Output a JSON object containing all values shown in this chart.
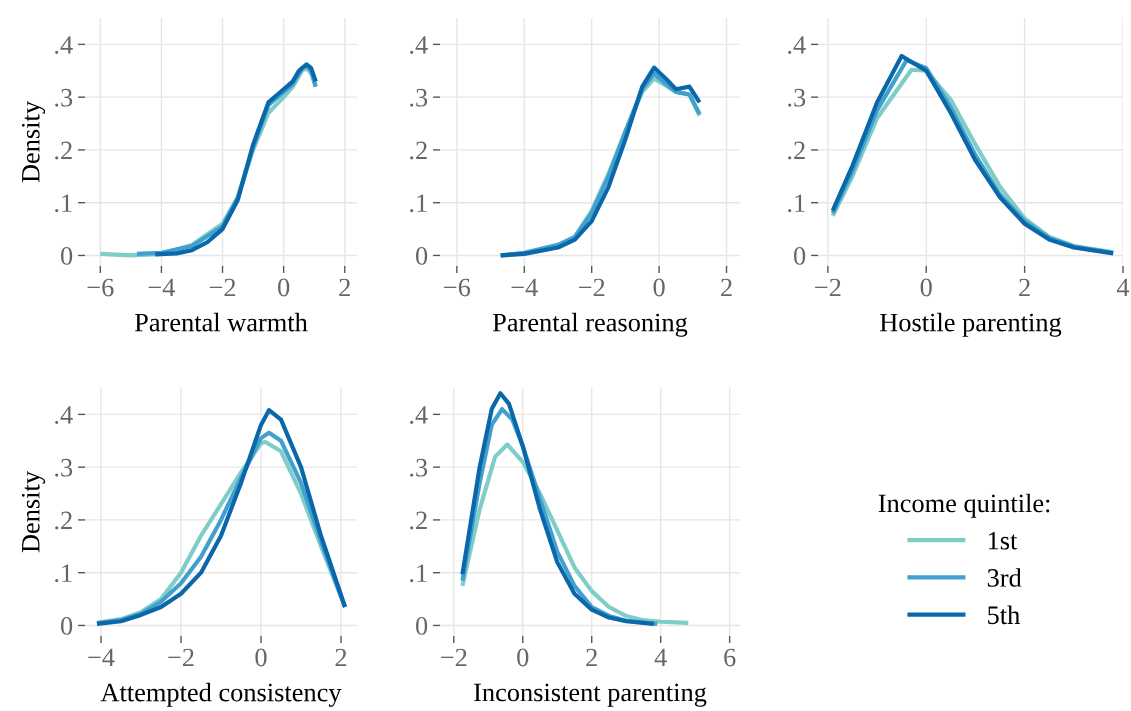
{
  "chart_data": [
    {
      "type": "line",
      "xlabel": "Parental warmth",
      "ylabel": "Density",
      "xlim": [
        -6.5,
        2.4
      ],
      "ylim": [
        -0.02,
        0.45
      ],
      "xticks": [
        {
          "value": -6,
          "label": "−6"
        },
        {
          "value": -4,
          "label": "−4"
        },
        {
          "value": -2,
          "label": "−2"
        },
        0,
        2
      ],
      "yticks": [
        0,
        {
          "value": 0.1,
          "label": ".1"
        },
        {
          "value": 0.2,
          "label": ".2"
        },
        {
          "value": 0.3,
          "label": ".3"
        },
        {
          "value": 0.4,
          "label": ".4"
        }
      ],
      "grid": true,
      "legend": false,
      "series": [
        {
          "color": "#7fcdc9",
          "x": [
            -6,
            -5,
            -4,
            -3,
            -2,
            -1.5,
            -1,
            -0.5,
            0,
            0.3,
            0.6,
            0.75,
            0.9,
            1.05
          ],
          "values": [
            0.003,
            0.0,
            0.003,
            0.02,
            0.06,
            0.11,
            0.2,
            0.27,
            0.3,
            0.32,
            0.35,
            0.355,
            0.345,
            0.32
          ]
        },
        {
          "color": "#41a0cd",
          "x": [
            -4.8,
            -4,
            -3,
            -2,
            -1.5,
            -1,
            -0.5,
            0,
            0.3,
            0.6,
            0.75,
            0.9,
            1.05
          ],
          "values": [
            0.003,
            0.005,
            0.018,
            0.055,
            0.11,
            0.205,
            0.285,
            0.31,
            0.325,
            0.355,
            0.36,
            0.35,
            0.32
          ]
        },
        {
          "color": "#0a67aa",
          "x": [
            -4.2,
            -3.5,
            -3,
            -2.5,
            -2,
            -1.5,
            -1,
            -0.5,
            -0.2,
            0,
            0.3,
            0.5,
            0.75,
            0.9,
            1.05
          ],
          "values": [
            0.002,
            0.004,
            0.01,
            0.025,
            0.05,
            0.105,
            0.21,
            0.29,
            0.305,
            0.315,
            0.33,
            0.35,
            0.362,
            0.355,
            0.33
          ]
        }
      ]
    },
    {
      "type": "line",
      "xlabel": "Parental reasoning",
      "xlim": [
        -6.5,
        2.4
      ],
      "ylim": [
        -0.02,
        0.45
      ],
      "xticks": [
        {
          "value": -6,
          "label": "−6"
        },
        {
          "value": -4,
          "label": "−4"
        },
        {
          "value": -2,
          "label": "−2"
        },
        0,
        2
      ],
      "yticks": [
        0,
        {
          "value": 0.1,
          "label": ".1"
        },
        {
          "value": 0.2,
          "label": ".2"
        },
        {
          "value": 0.3,
          "label": ".3"
        },
        {
          "value": 0.4,
          "label": ".4"
        }
      ],
      "grid": true,
      "legend": false,
      "series": [
        {
          "color": "#7fcdc9",
          "x": [
            -4.7,
            -4,
            -3,
            -2.5,
            -2,
            -1.5,
            -1,
            -0.5,
            -0.15,
            0.2,
            0.5,
            0.9,
            1.2
          ],
          "values": [
            0.0,
            0.004,
            0.018,
            0.035,
            0.085,
            0.155,
            0.235,
            0.31,
            0.335,
            0.322,
            0.31,
            0.305,
            0.265
          ]
        },
        {
          "color": "#41a0cd",
          "x": [
            -4.7,
            -4,
            -3,
            -2.5,
            -2,
            -1.5,
            -1,
            -0.5,
            -0.15,
            0.2,
            0.5,
            0.9,
            1.2
          ],
          "values": [
            0.0,
            0.005,
            0.02,
            0.035,
            0.08,
            0.15,
            0.235,
            0.315,
            0.345,
            0.325,
            0.31,
            0.305,
            0.268
          ]
        },
        {
          "color": "#0a67aa",
          "x": [
            -4.7,
            -4,
            -3,
            -2.5,
            -2,
            -1.5,
            -1,
            -0.5,
            -0.15,
            0.2,
            0.5,
            0.9,
            1.2
          ],
          "values": [
            0.0,
            0.003,
            0.015,
            0.03,
            0.065,
            0.13,
            0.22,
            0.32,
            0.356,
            0.335,
            0.315,
            0.32,
            0.29
          ]
        }
      ]
    },
    {
      "type": "line",
      "xlabel": "Hostile parenting",
      "xlim": [
        -2.2,
        4.0
      ],
      "ylim": [
        -0.02,
        0.45
      ],
      "xticks": [
        {
          "value": -2,
          "label": "−2"
        },
        0,
        2,
        4
      ],
      "yticks": [
        0,
        {
          "value": 0.1,
          "label": ".1"
        },
        {
          "value": 0.2,
          "label": ".2"
        },
        {
          "value": 0.3,
          "label": ".3"
        },
        {
          "value": 0.4,
          "label": ".4"
        }
      ],
      "grid": true,
      "legend": false,
      "series": [
        {
          "color": "#7fcdc9",
          "x": [
            -1.9,
            -1.5,
            -1,
            -0.3,
            0,
            0.5,
            1,
            1.5,
            2,
            2.5,
            3,
            3.8
          ],
          "values": [
            0.075,
            0.15,
            0.26,
            0.352,
            0.35,
            0.295,
            0.21,
            0.13,
            0.07,
            0.035,
            0.018,
            0.006
          ]
        },
        {
          "color": "#41a0cd",
          "x": [
            -1.9,
            -1.5,
            -1,
            -0.4,
            0,
            0.5,
            1,
            1.5,
            2,
            2.5,
            3,
            3.8
          ],
          "values": [
            0.08,
            0.16,
            0.275,
            0.37,
            0.355,
            0.28,
            0.19,
            0.115,
            0.065,
            0.033,
            0.017,
            0.005
          ]
        },
        {
          "color": "#0a67aa",
          "x": [
            -1.9,
            -1.5,
            -1,
            -0.5,
            0,
            0.5,
            1,
            1.5,
            2,
            2.5,
            3,
            3.8
          ],
          "values": [
            0.085,
            0.17,
            0.29,
            0.378,
            0.35,
            0.27,
            0.18,
            0.11,
            0.06,
            0.03,
            0.015,
            0.004
          ]
        }
      ]
    },
    {
      "type": "line",
      "xlabel": "Attempted consistency",
      "ylabel": "Density",
      "xlim": [
        -4.4,
        2.4
      ],
      "ylim": [
        -0.02,
        0.45
      ],
      "xticks": [
        {
          "value": -4,
          "label": "−4"
        },
        {
          "value": -2,
          "label": "−2"
        },
        0,
        2
      ],
      "yticks": [
        0,
        {
          "value": 0.1,
          "label": ".1"
        },
        {
          "value": 0.2,
          "label": ".2"
        },
        {
          "value": 0.3,
          "label": ".3"
        },
        {
          "value": 0.4,
          "label": ".4"
        }
      ],
      "grid": true,
      "legend": false,
      "series": [
        {
          "color": "#7fcdc9",
          "x": [
            -4.1,
            -3.5,
            -3,
            -2.5,
            -2,
            -1.5,
            -1,
            -0.5,
            0,
            0.1,
            0.5,
            1,
            1.5,
            2.1
          ],
          "values": [
            0.005,
            0.012,
            0.025,
            0.05,
            0.1,
            0.17,
            0.23,
            0.29,
            0.345,
            0.348,
            0.33,
            0.25,
            0.15,
            0.035
          ]
        },
        {
          "color": "#41a0cd",
          "x": [
            -4.1,
            -3.5,
            -3,
            -2.5,
            -2,
            -1.5,
            -1,
            -0.5,
            0,
            0.2,
            0.5,
            1,
            1.5,
            2.1
          ],
          "values": [
            0.004,
            0.01,
            0.022,
            0.045,
            0.08,
            0.13,
            0.2,
            0.28,
            0.355,
            0.365,
            0.35,
            0.27,
            0.16,
            0.035
          ]
        },
        {
          "color": "#0a67aa",
          "x": [
            -4.1,
            -3.5,
            -3,
            -2.5,
            -2,
            -1.5,
            -1,
            -0.5,
            0,
            0.2,
            0.5,
            1,
            1.5,
            2.1
          ],
          "values": [
            0.003,
            0.008,
            0.02,
            0.035,
            0.06,
            0.1,
            0.17,
            0.27,
            0.38,
            0.408,
            0.39,
            0.3,
            0.17,
            0.035
          ]
        }
      ]
    },
    {
      "type": "line",
      "xlabel": "Inconsistent parenting",
      "legend_title": "Income quintile:",
      "xlim": [
        -2.4,
        6.3
      ],
      "ylim": [
        -0.02,
        0.45
      ],
      "xticks": [
        {
          "value": -2,
          "label": "−2"
        },
        0,
        2,
        4,
        6
      ],
      "yticks": [
        0,
        {
          "value": 0.1,
          "label": ".1"
        },
        {
          "value": 0.2,
          "label": ".2"
        },
        {
          "value": 0.3,
          "label": ".3"
        },
        {
          "value": 0.4,
          "label": ".4"
        }
      ],
      "grid": true,
      "legend": "right",
      "series": [
        {
          "name": "1st",
          "color": "#7fcdc9",
          "x": [
            -1.75,
            -1.25,
            -0.8,
            -0.45,
            0,
            0.5,
            1,
            1.5,
            2,
            2.5,
            3,
            3.5,
            4,
            4.8
          ],
          "values": [
            0.075,
            0.22,
            0.32,
            0.343,
            0.31,
            0.25,
            0.18,
            0.11,
            0.065,
            0.035,
            0.018,
            0.01,
            0.007,
            0.005
          ]
        },
        {
          "name": "3rd",
          "color": "#41a0cd",
          "x": [
            -1.75,
            -1.25,
            -0.9,
            -0.6,
            -0.3,
            0,
            0.5,
            1,
            1.5,
            2,
            2.5,
            3,
            3.9
          ],
          "values": [
            0.085,
            0.27,
            0.38,
            0.41,
            0.39,
            0.34,
            0.24,
            0.14,
            0.075,
            0.035,
            0.018,
            0.009,
            0.003
          ]
        },
        {
          "name": "5th",
          "color": "#0a67aa",
          "x": [
            -1.75,
            -1.25,
            -0.9,
            -0.65,
            -0.4,
            0,
            0.5,
            1,
            1.5,
            2,
            2.5,
            3,
            3.8
          ],
          "values": [
            0.097,
            0.3,
            0.41,
            0.44,
            0.42,
            0.34,
            0.22,
            0.12,
            0.06,
            0.03,
            0.015,
            0.008,
            0.003
          ]
        }
      ]
    }
  ]
}
